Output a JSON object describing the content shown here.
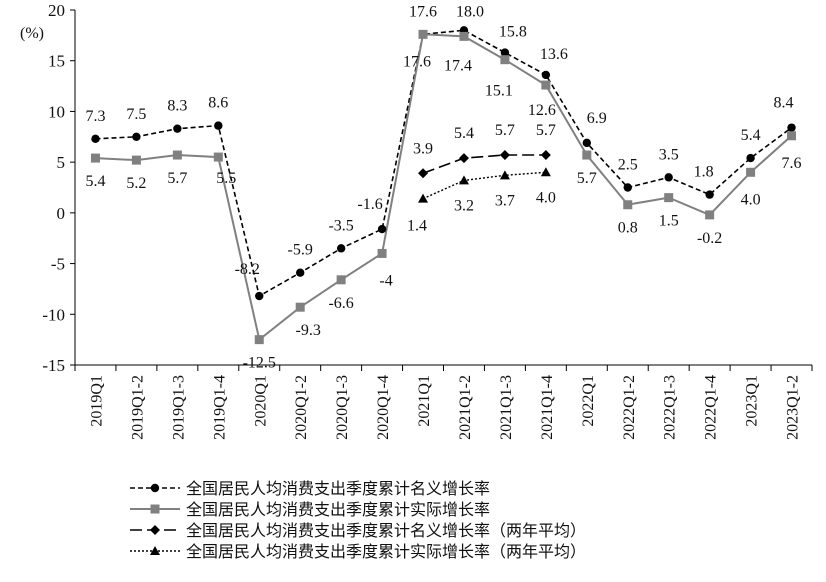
{
  "chart_data": {
    "type": "line",
    "title": "",
    "xlabel": "",
    "ylabel": "(%)",
    "ylim": [
      -15,
      20
    ],
    "yticks": [
      -15,
      -10,
      -5,
      0,
      5,
      10,
      15,
      20
    ],
    "grid": false,
    "legend_position": "bottom",
    "categories": [
      "2019Q1",
      "2019Q1-2",
      "2019Q1-3",
      "2019Q1-4",
      "2020Q1",
      "2020Q1-2",
      "2020Q1-3",
      "2020Q1-4",
      "2021Q1",
      "2021Q1-2",
      "2021Q1-3",
      "2021Q1-4",
      "2022Q1",
      "2022Q1-2",
      "2022Q1-3",
      "2022Q1-4",
      "2023Q1",
      "2023Q1-2"
    ],
    "series": [
      {
        "name": "全国居民人均消费支出季度累计名义增长率",
        "color": "#000000",
        "line_style": "short-dash",
        "marker": "circle",
        "values": [
          7.3,
          7.5,
          8.3,
          8.6,
          -8.2,
          -5.9,
          -3.5,
          -1.6,
          17.6,
          18.0,
          15.8,
          13.6,
          6.9,
          2.5,
          3.5,
          1.8,
          5.4,
          8.4
        ],
        "labels": [
          "7.3",
          "7.5",
          "8.3",
          "8.6",
          "-8.2",
          "-5.9",
          "-3.5",
          "-1.6",
          "17.6",
          "18.0",
          "15.8",
          "13.6",
          "6.9",
          "2.5",
          "3.5",
          "1.8",
          "5.4",
          "8.4"
        ]
      },
      {
        "name": "全国居民人均消费支出季度累计实际增长率",
        "color": "#808080",
        "line_style": "solid",
        "marker": "square",
        "values": [
          5.4,
          5.2,
          5.7,
          5.5,
          -12.5,
          -9.3,
          -6.6,
          -4,
          17.6,
          17.4,
          15.1,
          12.6,
          5.7,
          0.8,
          1.5,
          -0.2,
          4.0,
          7.6
        ],
        "labels": [
          "5.4",
          "5.2",
          "5.7",
          "5.5",
          "-12.5",
          "-9.3",
          "-6.6",
          "-4",
          "17.6",
          "17.4",
          "15.1",
          "12.6",
          "5.7",
          "0.8",
          "1.5",
          "-0.2",
          "4.0",
          "7.6"
        ]
      },
      {
        "name": "全国居民人均消费支出季度累计名义增长率（两年平均）",
        "color": "#000000",
        "line_style": "long-dash",
        "marker": "diamond",
        "values": [
          null,
          null,
          null,
          null,
          null,
          null,
          null,
          null,
          3.9,
          5.4,
          5.7,
          5.7,
          null,
          null,
          null,
          null,
          null,
          null
        ],
        "labels": [
          null,
          null,
          null,
          null,
          null,
          null,
          null,
          null,
          "3.9",
          "5.4",
          "5.7",
          "5.7",
          null,
          null,
          null,
          null,
          null,
          null
        ]
      },
      {
        "name": "全国居民人均消费支出季度累计实际增长率（两年平均）",
        "color": "#000000",
        "line_style": "dotted",
        "marker": "triangle",
        "values": [
          null,
          null,
          null,
          null,
          null,
          null,
          null,
          null,
          1.4,
          3.2,
          3.7,
          4.0,
          null,
          null,
          null,
          null,
          null,
          null
        ],
        "labels": [
          null,
          null,
          null,
          null,
          null,
          null,
          null,
          null,
          "1.4",
          "3.2",
          "3.7",
          "4.0",
          null,
          null,
          null,
          null,
          null,
          null
        ]
      }
    ]
  }
}
